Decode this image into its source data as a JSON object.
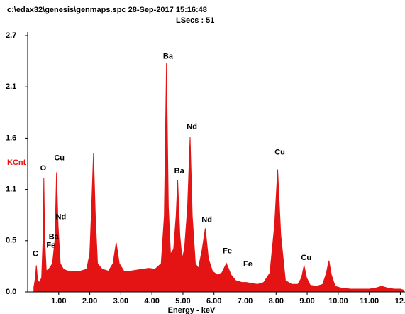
{
  "chart_data": {
    "type": "area",
    "title": "c:\\edax32\\genesis\\genmaps.spc  28-Sep-2017 15:16:48",
    "subtitle": "LSecs : 51",
    "x_label": "Energy - keV",
    "y_label": "KCnt",
    "color": "#e41414",
    "y_label_color": "#e41414",
    "xlim": [
      0,
      12.15
    ],
    "ylim": [
      0,
      2.7
    ],
    "xticks": [
      {
        "value": 1,
        "label": "1.00"
      },
      {
        "value": 2,
        "label": "2.00"
      },
      {
        "value": 3,
        "label": "3.00"
      },
      {
        "value": 4,
        "label": "4.00"
      },
      {
        "value": 5,
        "label": "5.00"
      },
      {
        "value": 6,
        "label": "6.00"
      },
      {
        "value": 7,
        "label": "7.00"
      },
      {
        "value": 8,
        "label": "8.00"
      },
      {
        "value": 9,
        "label": "9.00"
      },
      {
        "value": 10,
        "label": "10.00"
      },
      {
        "value": 11,
        "label": "11.00"
      },
      {
        "value": 12,
        "label": "12."
      }
    ],
    "yticks": [
      {
        "value": 0,
        "label": "0.0"
      },
      {
        "value": 0.54,
        "label": "0.5"
      },
      {
        "value": 1.08,
        "label": "1.1"
      },
      {
        "value": 1.62,
        "label": "1.6"
      },
      {
        "value": 2.16,
        "label": "2.1"
      },
      {
        "value": 2.7,
        "label": "2.7"
      }
    ],
    "x": [
      0.2,
      0.25,
      0.28,
      0.32,
      0.38,
      0.45,
      0.5,
      0.52,
      0.55,
      0.6,
      0.7,
      0.8,
      0.88,
      0.93,
      0.98,
      1.05,
      1.15,
      1.3,
      1.5,
      1.7,
      1.9,
      2.0,
      2.06,
      2.12,
      2.18,
      2.25,
      2.4,
      2.6,
      2.75,
      2.85,
      2.95,
      3.1,
      3.3,
      3.5,
      3.7,
      3.9,
      4.1,
      4.3,
      4.4,
      4.47,
      4.53,
      4.6,
      4.7,
      4.78,
      4.83,
      4.9,
      4.97,
      5.05,
      5.15,
      5.23,
      5.3,
      5.4,
      5.5,
      5.62,
      5.72,
      5.82,
      5.95,
      6.1,
      6.25,
      6.4,
      6.55,
      6.7,
      6.9,
      7.05,
      7.2,
      7.4,
      7.6,
      7.8,
      7.95,
      8.05,
      8.15,
      8.3,
      8.5,
      8.7,
      8.82,
      8.9,
      8.98,
      9.1,
      9.3,
      9.5,
      9.62,
      9.7,
      9.78,
      9.9,
      10.1,
      10.4,
      10.7,
      11.0,
      11.2,
      11.4,
      11.6,
      11.8,
      12.0,
      12.1
    ],
    "values": [
      0.05,
      0.15,
      0.28,
      0.12,
      0.1,
      0.15,
      0.6,
      1.2,
      0.55,
      0.22,
      0.25,
      0.3,
      0.55,
      1.26,
      0.7,
      0.3,
      0.24,
      0.22,
      0.22,
      0.22,
      0.24,
      0.4,
      0.9,
      1.46,
      0.8,
      0.3,
      0.24,
      0.22,
      0.3,
      0.52,
      0.3,
      0.22,
      0.22,
      0.23,
      0.24,
      0.25,
      0.24,
      0.3,
      0.8,
      2.41,
      0.9,
      0.4,
      0.45,
      0.8,
      1.18,
      0.6,
      0.35,
      0.45,
      0.9,
      1.63,
      0.8,
      0.3,
      0.25,
      0.45,
      0.67,
      0.35,
      0.22,
      0.18,
      0.2,
      0.3,
      0.18,
      0.12,
      0.1,
      0.1,
      0.09,
      0.08,
      0.1,
      0.2,
      0.7,
      1.29,
      0.6,
      0.12,
      0.08,
      0.08,
      0.15,
      0.28,
      0.15,
      0.07,
      0.06,
      0.08,
      0.2,
      0.33,
      0.18,
      0.06,
      0.04,
      0.03,
      0.03,
      0.03,
      0.04,
      0.06,
      0.04,
      0.03,
      0.03,
      0.02
    ],
    "annotations": [
      {
        "text": "C",
        "x": 0.25,
        "y": 0.4
      },
      {
        "text": "O",
        "x": 0.5,
        "y": 1.3
      },
      {
        "text": "Cu",
        "x": 1.02,
        "y": 1.41
      },
      {
        "text": "Nd",
        "x": 1.07,
        "y": 0.79
      },
      {
        "text": "Ba",
        "x": 0.84,
        "y": 0.58
      },
      {
        "text": "Fe",
        "x": 0.75,
        "y": 0.49
      },
      {
        "text": "Ba",
        "x": 4.52,
        "y": 2.48
      },
      {
        "text": "Nd",
        "x": 5.29,
        "y": 1.74
      },
      {
        "text": "Ba",
        "x": 4.88,
        "y": 1.27
      },
      {
        "text": "Nd",
        "x": 5.77,
        "y": 0.76
      },
      {
        "text": "Fe",
        "x": 6.43,
        "y": 0.43
      },
      {
        "text": "Fe",
        "x": 7.09,
        "y": 0.29
      },
      {
        "text": "Cu",
        "x": 8.12,
        "y": 1.47
      },
      {
        "text": "Cu",
        "x": 8.97,
        "y": 0.36
      }
    ]
  }
}
